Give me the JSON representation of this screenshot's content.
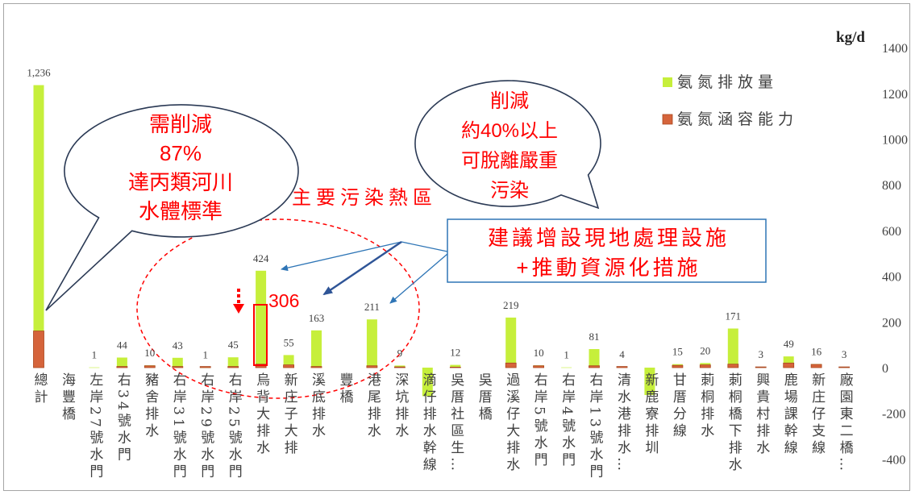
{
  "chart_data": {
    "type": "bar",
    "ylabel": "kg/d",
    "categories": [
      "總計",
      "海豐橋",
      "左岸27號水門",
      "右34號水門",
      "豬舍排水",
      "右岸31號水門",
      "右岸29號水門",
      "右岸25號水門",
      "烏背大排水",
      "新庄子大排",
      "溪底排水",
      "豐橋",
      "港尾排水",
      "深坑排水",
      "滴仔排水幹線",
      "吳厝社區生…",
      "吳厝橋",
      "過溪仔大排水",
      "右岸5號水門",
      "右岸4號水門",
      "右岸13號水門",
      "清水港排水…",
      "新鹿寮排圳",
      "甘厝分線",
      "莿桐排水",
      "莿桐橋下排水",
      "興貴村排水",
      "鹿場課幹線",
      "新庄仔支線",
      "廠園東二橋…"
    ],
    "series": [
      {
        "name": "氨氮排放量",
        "color": "#c6ef3b",
        "values": [
          1236,
          null,
          1,
          44,
          10,
          43,
          1,
          45,
          424,
          55,
          163,
          null,
          211,
          9,
          -125,
          12,
          null,
          219,
          10,
          1,
          81,
          4,
          -120,
          15,
          20,
          171,
          3,
          49,
          16,
          3
        ],
        "data_labels": [
          "1,236",
          null,
          "1",
          "44",
          "10",
          "43",
          "1",
          "45",
          "424",
          "55",
          "163",
          null,
          "211",
          "9",
          null,
          "12",
          null,
          "219",
          "10",
          "1",
          "81",
          "4",
          null,
          "15",
          "20",
          "171",
          "3",
          "49",
          "16",
          "3"
        ]
      },
      {
        "name": "氨氮涵容能力",
        "color": "#d5643b",
        "border_color": "#a9471f",
        "values": [
          160,
          null,
          0,
          5,
          8,
          5,
          5,
          5,
          15,
          12,
          5,
          null,
          8,
          3,
          0,
          2,
          null,
          20,
          8,
          0,
          8,
          5,
          0,
          10,
          12,
          15,
          3,
          20,
          14,
          3
        ]
      }
    ],
    "ylim": [
      -400,
      1400
    ],
    "yticks": [
      1400,
      1200,
      1000,
      800,
      600,
      400,
      200,
      0,
      -200,
      -400
    ],
    "legend_position": "top-right",
    "grid": false
  },
  "annotations": {
    "left_callout": {
      "lines": [
        "需削減",
        "87%",
        "達丙類河川",
        "水體標準"
      ]
    },
    "right_callout": {
      "lines": [
        "削減",
        "約40%以上",
        "可脫離嚴重",
        "污染"
      ]
    },
    "hotspot_label": "主要污染熱區",
    "suggestion_box": {
      "lines": [
        "建議增設現地處理設施",
        "+推動資源化措施"
      ]
    },
    "reduction_label": "306",
    "colors": {
      "highlight_red": "#ff0000",
      "box_blue": "#2e75b6",
      "bubble_outline": "#2b3a55"
    }
  }
}
